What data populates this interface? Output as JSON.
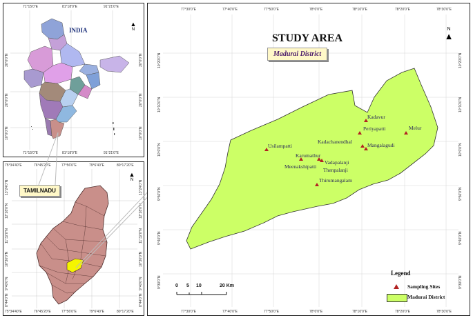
{
  "india_map": {
    "label": "INDIA",
    "lon_ticks": [
      "71°15'0\"E",
      "81°18'0\"E",
      "91°21'0\"E"
    ],
    "lat_ticks": [
      "30°0'0\"N",
      "20°0'0\"N",
      "10°0'0\"N"
    ],
    "lat_ticks_right": [
      "30°0'0\"N",
      "20°0'0\"N",
      "10°0'0\"N"
    ],
    "lon_ticks_bottom": [
      "71°15'0\"E",
      "81°18'0\"E",
      "91°21'0\"E"
    ]
  },
  "tamilnadu_map": {
    "label": "TAMILNADU",
    "lon_ticks_top": [
      "75°34'40\"E",
      "76°45'20\"E",
      "77°56'0\"E",
      "79°6'40\"E",
      "80°17'20\"E"
    ],
    "lon_ticks_bottom": [
      "75°34'40\"E",
      "76°45'20\"E",
      "77°56'0\"E",
      "79°6'40\"E",
      "80°17'20\"E"
    ],
    "lat_ticks": [
      "13°24'0\"N",
      "12°28'0\"N",
      "11°32'0\"N",
      "10°36'0\"N",
      "9°40'0\"N",
      "8°44'0\"N"
    ]
  },
  "study_map": {
    "title": "STUDY AREA",
    "district_callout": "Madurai District",
    "lon_ticks": [
      "77°30'0\"E",
      "77°40'0\"E",
      "77°50'0\"E",
      "78°0'0\"E",
      "78°10'0\"E",
      "78°20'0\"E",
      "78°30'0\"E"
    ],
    "lat_ticks": [
      "10°20'0\"N",
      "10°10'0\"N",
      "10°0'0\"N",
      "9°50'0\"N",
      "9°40'0\"N",
      "9°30'0\"N"
    ],
    "north_label": "N",
    "sites": [
      {
        "name": "Kadavur"
      },
      {
        "name": "Periyapatti"
      },
      {
        "name": "Melur"
      },
      {
        "name": "Kadachanendhal"
      },
      {
        "name": "Mangalagudi"
      },
      {
        "name": "Usilampatti"
      },
      {
        "name": "Karumathur"
      },
      {
        "name": "Vadapalanji"
      },
      {
        "name": "Meenakshipatti"
      },
      {
        "name": "Thenpalanji"
      },
      {
        "name": "Thirumangalam"
      }
    ],
    "scale_bar": {
      "labels": [
        "0",
        "5",
        "10",
        "20 Km"
      ]
    },
    "legend": {
      "title": "Legend",
      "items": [
        {
          "label": "Sampling Sites",
          "color": "#b22222"
        },
        {
          "label": "Madurai District",
          "color": "#ccff66"
        }
      ]
    }
  },
  "colors": {
    "district_fill": "#ccff66",
    "tamilnadu_fill": "#c98f8a",
    "madurai_highlight": "#f5f500",
    "site_marker": "#b22222"
  }
}
